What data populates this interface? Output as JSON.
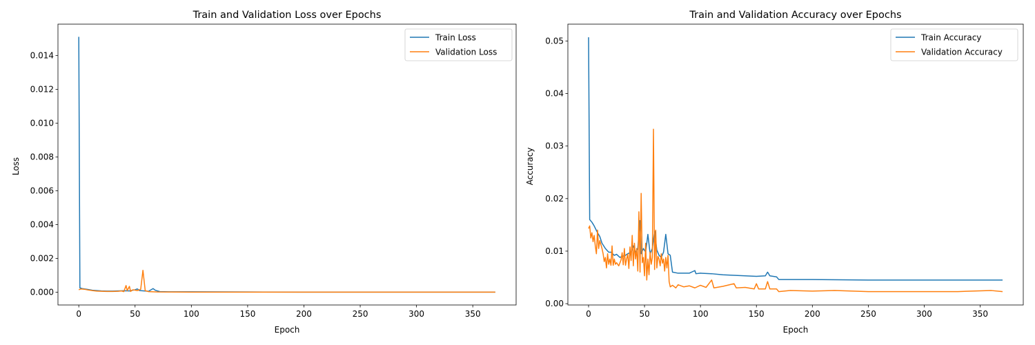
{
  "chart_data": [
    {
      "type": "line",
      "title": "Train and Validation Loss over Epochs",
      "xlabel": "Epoch",
      "ylabel": "Loss",
      "xlim": [
        -18.5,
        388.5
      ],
      "ylim": [
        -0.00075,
        0.01585
      ],
      "xticks": [
        0,
        50,
        100,
        150,
        200,
        250,
        300,
        350
      ],
      "yticks": [
        0.0,
        0.002,
        0.004,
        0.006,
        0.008,
        0.01,
        0.012,
        0.014
      ],
      "ytick_labels": [
        "0.000",
        "0.002",
        "0.004",
        "0.006",
        "0.008",
        "0.010",
        "0.012",
        "0.014"
      ],
      "legend_position": "top-right",
      "grid": false,
      "series": [
        {
          "name": "Train Loss",
          "color": "#1f77b4",
          "points": [
            [
              0,
              0.0151
            ],
            [
              1,
              0.00026
            ],
            [
              3,
              0.00022
            ],
            [
              5,
              0.0002
            ],
            [
              8,
              0.00017
            ],
            [
              12,
              0.00012
            ],
            [
              16,
              0.0001
            ],
            [
              20,
              8e-05
            ],
            [
              25,
              7e-05
            ],
            [
              30,
              7e-05
            ],
            [
              35,
              8e-05
            ],
            [
              40,
              9e-05
            ],
            [
              45,
              8e-05
            ],
            [
              50,
              0.00015
            ],
            [
              52,
              0.0002
            ],
            [
              54,
              0.0001
            ],
            [
              58,
              8e-05
            ],
            [
              62,
              6e-05
            ],
            [
              66,
              0.00022
            ],
            [
              68,
              0.00012
            ],
            [
              72,
              4e-05
            ],
            [
              80,
              3e-05
            ],
            [
              100,
              3e-05
            ],
            [
              150,
              2e-05
            ],
            [
              200,
              1e-05
            ],
            [
              250,
              1e-05
            ],
            [
              300,
              1e-05
            ],
            [
              370,
              1e-05
            ]
          ]
        },
        {
          "name": "Validation Loss",
          "color": "#ff7f0e",
          "points": [
            [
              0,
              0.00015
            ],
            [
              2,
              0.0002
            ],
            [
              5,
              0.00018
            ],
            [
              8,
              0.00014
            ],
            [
              12,
              0.0001
            ],
            [
              16,
              7e-05
            ],
            [
              20,
              6e-05
            ],
            [
              25,
              5e-05
            ],
            [
              30,
              5e-05
            ],
            [
              35,
              6e-05
            ],
            [
              38,
              8e-05
            ],
            [
              40,
              4e-05
            ],
            [
              42,
              0.0004
            ],
            [
              43,
              0.0001
            ],
            [
              45,
              0.00035
            ],
            [
              46,
              5e-05
            ],
            [
              48,
              0.00015
            ],
            [
              52,
              0.0001
            ],
            [
              55,
              0.00018
            ],
            [
              57,
              0.0013
            ],
            [
              58,
              0.0007
            ],
            [
              59,
              0.0001
            ],
            [
              62,
              4e-05
            ],
            [
              66,
              3e-05
            ],
            [
              70,
              2e-05
            ],
            [
              100,
              1e-05
            ],
            [
              150,
              1e-05
            ],
            [
              200,
              1e-05
            ],
            [
              250,
              1e-05
            ],
            [
              300,
              1e-05
            ],
            [
              370,
              1e-05
            ]
          ]
        }
      ]
    },
    {
      "type": "line",
      "title": "Train and Validation Accuracy over Epochs",
      "xlabel": "Epoch",
      "ylabel": "Accuracy",
      "xlim": [
        -18.5,
        388.5
      ],
      "ylim": [
        -0.00025,
        0.0532
      ],
      "xticks": [
        0,
        50,
        100,
        150,
        200,
        250,
        300,
        350
      ],
      "yticks": [
        0.0,
        0.01,
        0.02,
        0.03,
        0.04,
        0.05
      ],
      "ytick_labels": [
        "0.00",
        "0.01",
        "0.02",
        "0.03",
        "0.04",
        "0.05"
      ],
      "legend_position": "top-right",
      "grid": false,
      "series": [
        {
          "name": "Train Accuracy",
          "color": "#1f77b4",
          "points": [
            [
              0,
              0.0507
            ],
            [
              1,
              0.016
            ],
            [
              3,
              0.0155
            ],
            [
              5,
              0.0148
            ],
            [
              8,
              0.0135
            ],
            [
              10,
              0.0128
            ],
            [
              12,
              0.0115
            ],
            [
              15,
              0.0105
            ],
            [
              18,
              0.0098
            ],
            [
              20,
              0.0098
            ],
            [
              23,
              0.0092
            ],
            [
              25,
              0.0094
            ],
            [
              28,
              0.0088
            ],
            [
              30,
              0.009
            ],
            [
              33,
              0.0092
            ],
            [
              35,
              0.0095
            ],
            [
              38,
              0.0098
            ],
            [
              40,
              0.011
            ],
            [
              42,
              0.0098
            ],
            [
              44,
              0.0105
            ],
            [
              46,
              0.0158
            ],
            [
              47,
              0.0095
            ],
            [
              49,
              0.0105
            ],
            [
              51,
              0.0098
            ],
            [
              53,
              0.0132
            ],
            [
              55,
              0.0095
            ],
            [
              57,
              0.0105
            ],
            [
              59,
              0.0138
            ],
            [
              61,
              0.0102
            ],
            [
              63,
              0.0092
            ],
            [
              65,
              0.0088
            ],
            [
              67,
              0.0098
            ],
            [
              69,
              0.0132
            ],
            [
              71,
              0.0095
            ],
            [
              73,
              0.0092
            ],
            [
              75,
              0.006
            ],
            [
              80,
              0.0058
            ],
            [
              90,
              0.0058
            ],
            [
              95,
              0.0063
            ],
            [
              96,
              0.0057
            ],
            [
              100,
              0.0058
            ],
            [
              110,
              0.0057
            ],
            [
              120,
              0.0055
            ],
            [
              130,
              0.0054
            ],
            [
              140,
              0.0053
            ],
            [
              150,
              0.0052
            ],
            [
              158,
              0.0053
            ],
            [
              160,
              0.006
            ],
            [
              162,
              0.0053
            ],
            [
              168,
              0.0051
            ],
            [
              170,
              0.0046
            ],
            [
              200,
              0.0046
            ],
            [
              250,
              0.0045
            ],
            [
              300,
              0.0045
            ],
            [
              370,
              0.0045
            ]
          ]
        },
        {
          "name": "Validation Accuracy",
          "color": "#ff7f0e",
          "points": [
            [
              0,
              0.0143
            ],
            [
              1,
              0.0148
            ],
            [
              2,
              0.0125
            ],
            [
              3,
              0.0135
            ],
            [
              4,
              0.0118
            ],
            [
              5,
              0.013
            ],
            [
              6,
              0.011
            ],
            [
              7,
              0.0095
            ],
            [
              8,
              0.014
            ],
            [
              9,
              0.0105
            ],
            [
              10,
              0.012
            ],
            [
              12,
              0.0105
            ],
            [
              13,
              0.0095
            ],
            [
              14,
              0.008
            ],
            [
              15,
              0.0088
            ],
            [
              16,
              0.0068
            ],
            [
              17,
              0.0095
            ],
            [
              18,
              0.0075
            ],
            [
              19,
              0.0085
            ],
            [
              20,
              0.0073
            ],
            [
              21,
              0.011
            ],
            [
              22,
              0.0073
            ],
            [
              23,
              0.0085
            ],
            [
              24,
              0.0075
            ],
            [
              25,
              0.0078
            ],
            [
              27,
              0.0072
            ],
            [
              29,
              0.0083
            ],
            [
              30,
              0.0097
            ],
            [
              31,
              0.0074
            ],
            [
              32,
              0.0105
            ],
            [
              33,
              0.0073
            ],
            [
              34,
              0.0085
            ],
            [
              35,
              0.0094
            ],
            [
              36,
              0.0067
            ],
            [
              37,
              0.0108
            ],
            [
              38,
              0.0082
            ],
            [
              39,
              0.013
            ],
            [
              40,
              0.0072
            ],
            [
              41,
              0.0115
            ],
            [
              42,
              0.0085
            ],
            [
              43,
              0.0105
            ],
            [
              44,
              0.0062
            ],
            [
              45,
              0.0175
            ],
            [
              46,
              0.006
            ],
            [
              47,
              0.021
            ],
            [
              48,
              0.0078
            ],
            [
              49,
              0.0088
            ],
            [
              50,
              0.0053
            ],
            [
              51,
              0.0115
            ],
            [
              52,
              0.0045
            ],
            [
              53,
              0.0085
            ],
            [
              54,
              0.0055
            ],
            [
              55,
              0.0098
            ],
            [
              56,
              0.0075
            ],
            [
              57,
              0.0088
            ],
            [
              58,
              0.0332
            ],
            [
              59,
              0.0065
            ],
            [
              60,
              0.014
            ],
            [
              61,
              0.0068
            ],
            [
              62,
              0.009
            ],
            [
              63,
              0.0085
            ],
            [
              64,
              0.0072
            ],
            [
              65,
              0.0095
            ],
            [
              66,
              0.0077
            ],
            [
              67,
              0.0085
            ],
            [
              68,
              0.0062
            ],
            [
              69,
              0.0088
            ],
            [
              70,
              0.0068
            ],
            [
              71,
              0.0092
            ],
            [
              72,
              0.0042
            ],
            [
              73,
              0.0032
            ],
            [
              75,
              0.0035
            ],
            [
              78,
              0.003
            ],
            [
              80,
              0.0036
            ],
            [
              85,
              0.0032
            ],
            [
              90,
              0.0034
            ],
            [
              95,
              0.003
            ],
            [
              100,
              0.0035
            ],
            [
              105,
              0.0031
            ],
            [
              110,
              0.0045
            ],
            [
              112,
              0.003
            ],
            [
              120,
              0.0033
            ],
            [
              130,
              0.0038
            ],
            [
              132,
              0.003
            ],
            [
              140,
              0.0031
            ],
            [
              148,
              0.0028
            ],
            [
              150,
              0.0038
            ],
            [
              152,
              0.0028
            ],
            [
              158,
              0.0028
            ],
            [
              160,
              0.0042
            ],
            [
              162,
              0.0028
            ],
            [
              168,
              0.0028
            ],
            [
              170,
              0.0023
            ],
            [
              180,
              0.0025
            ],
            [
              200,
              0.0024
            ],
            [
              220,
              0.0025
            ],
            [
              250,
              0.0023
            ],
            [
              300,
              0.0023
            ],
            [
              330,
              0.0023
            ],
            [
              360,
              0.0025
            ],
            [
              370,
              0.0023
            ]
          ]
        }
      ]
    }
  ]
}
